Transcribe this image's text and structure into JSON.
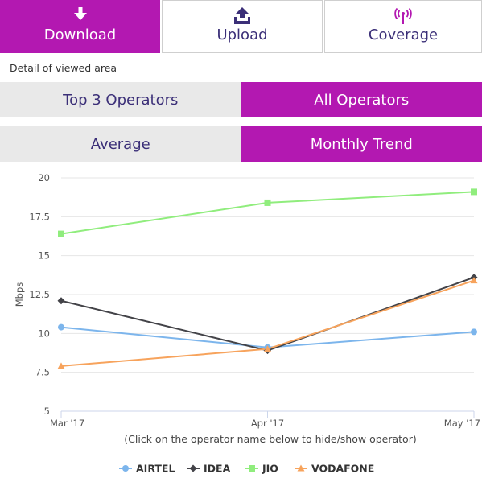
{
  "nav": {
    "tabs": [
      {
        "label": "Download",
        "icon": "download-icon",
        "active": true
      },
      {
        "label": "Upload",
        "icon": "upload-icon",
        "active": false
      },
      {
        "label": "Coverage",
        "icon": "signal-tower-icon",
        "active": false
      }
    ]
  },
  "caption": "Detail of viewed area",
  "operators_toggle": {
    "left": "Top 3 Operators",
    "right": "All Operators",
    "active": "right"
  },
  "view_toggle": {
    "left": "Average",
    "right": "Monthly Trend",
    "active": "right"
  },
  "colors": {
    "accent": "#b318b1",
    "text": "#3b2f78",
    "inactive_bg": "#e9e9e9"
  },
  "chart_data": {
    "type": "line",
    "title": "",
    "xlabel": "",
    "ylabel": "Mbps",
    "categories": [
      "Mar '17",
      "Apr '17",
      "May '17"
    ],
    "ylim": [
      5,
      20
    ],
    "yticks": [
      "5",
      "7.5",
      "10",
      "12.5",
      "15",
      "17.5",
      "20"
    ],
    "grid": true,
    "legend": "bottom",
    "hint": "(Click on the operator name below to hide/show operator)",
    "series": [
      {
        "name": "AIRTEL",
        "color": "#7cb5ec",
        "marker": "circle",
        "values": [
          10.4,
          9.1,
          10.1
        ]
      },
      {
        "name": "IDEA",
        "color": "#434348",
        "marker": "diamond",
        "values": [
          12.1,
          8.9,
          13.6
        ]
      },
      {
        "name": "JIO",
        "color": "#90ed7d",
        "marker": "square",
        "values": [
          16.4,
          18.4,
          19.1
        ]
      },
      {
        "name": "VODAFONE",
        "color": "#f7a35c",
        "marker": "triangle",
        "values": [
          7.9,
          9.0,
          13.4
        ]
      }
    ]
  }
}
